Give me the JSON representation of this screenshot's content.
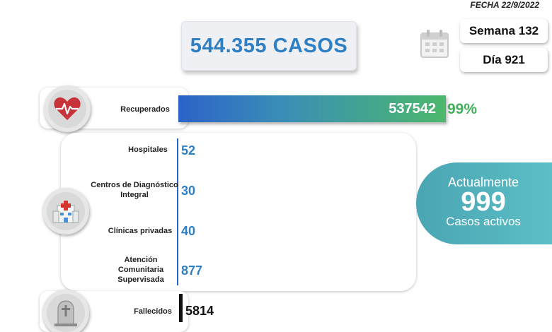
{
  "date": "FECHA 22/9/2022",
  "cases": "544.355 CASOS",
  "week": "Semana 132",
  "day": "Día 921",
  "recovered": {
    "label": "Recuperados",
    "value": "537542",
    "percent": "99%"
  },
  "active": {
    "prefix": "Actualmente",
    "value": "999",
    "suffix": "Casos activos"
  },
  "facilities": [
    {
      "label": "Hospitales",
      "value": "52"
    },
    {
      "label": "Centros de Diagnóstico Integral",
      "value": "30"
    },
    {
      "label": "Clínicas privadas",
      "value": "40"
    },
    {
      "label": "Atención Comunitaria Supervisada",
      "value": "877"
    }
  ],
  "deaths": {
    "label": "Fallecidos",
    "value": "5814"
  },
  "icons": [
    "calendar-icon",
    "heart-pulse-icon",
    "hospital-icon",
    "tombstone-icon"
  ],
  "colors": {
    "accent_blue": "#2f7fc4",
    "accent_green": "#42b05a",
    "active_teal": "#4aa5b3"
  }
}
